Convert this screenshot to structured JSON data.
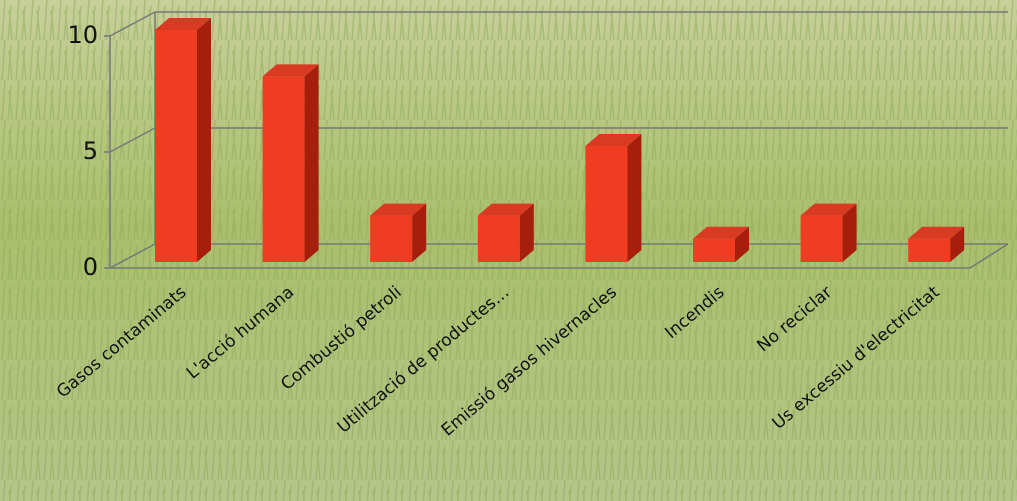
{
  "chart_data": {
    "type": "bar3d",
    "categories": [
      "Gasos contaminats",
      "L'acció humana",
      "Combustió petroli",
      "Utilització de productes…",
      "Emissió  gasos hivernacles",
      "Incendis",
      "No reciclar",
      "Us excessiu d'electricitat"
    ],
    "values": [
      10,
      8,
      2,
      2,
      5,
      1,
      2,
      1
    ],
    "color": "#f03c20",
    "ylim": [
      0,
      10
    ],
    "yticks": [
      0,
      5,
      10
    ],
    "grid": true
  }
}
